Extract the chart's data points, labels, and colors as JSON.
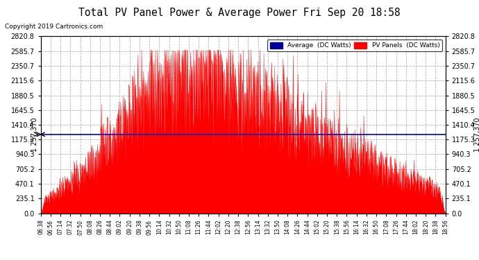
{
  "title": "Total PV Panel Power & Average Power Fri Sep 20 18:58",
  "copyright": "Copyright 2019 Cartronics.com",
  "average_value": 1257.37,
  "ymin": 0.0,
  "ymax": 2820.8,
  "main_y_ticks": [
    0.0,
    235.1,
    470.1,
    705.2,
    940.3,
    1175.3,
    1410.4,
    1645.5,
    1880.5,
    2115.6,
    2350.7,
    2585.7,
    2820.8
  ],
  "x_tick_labels": [
    "06:38",
    "06:56",
    "07:14",
    "07:32",
    "07:50",
    "08:08",
    "08:26",
    "08:44",
    "09:02",
    "09:20",
    "09:38",
    "09:56",
    "10:14",
    "10:32",
    "10:50",
    "11:08",
    "11:26",
    "11:44",
    "12:02",
    "12:20",
    "12:38",
    "12:56",
    "13:14",
    "13:32",
    "13:50",
    "14:08",
    "14:26",
    "14:44",
    "15:02",
    "15:20",
    "15:38",
    "15:56",
    "16:14",
    "16:32",
    "16:50",
    "17:08",
    "17:26",
    "17:44",
    "18:02",
    "18:20",
    "18:38",
    "18:56"
  ],
  "fill_color": "#FF0000",
  "avg_line_color": "#0000CC",
  "background_color": "#FFFFFF",
  "grid_color": "#AAAAAA",
  "title_fontsize": 11,
  "legend_avg_color": "#000099",
  "legend_pv_color": "#FF0000",
  "avg_label": "1 257,370"
}
